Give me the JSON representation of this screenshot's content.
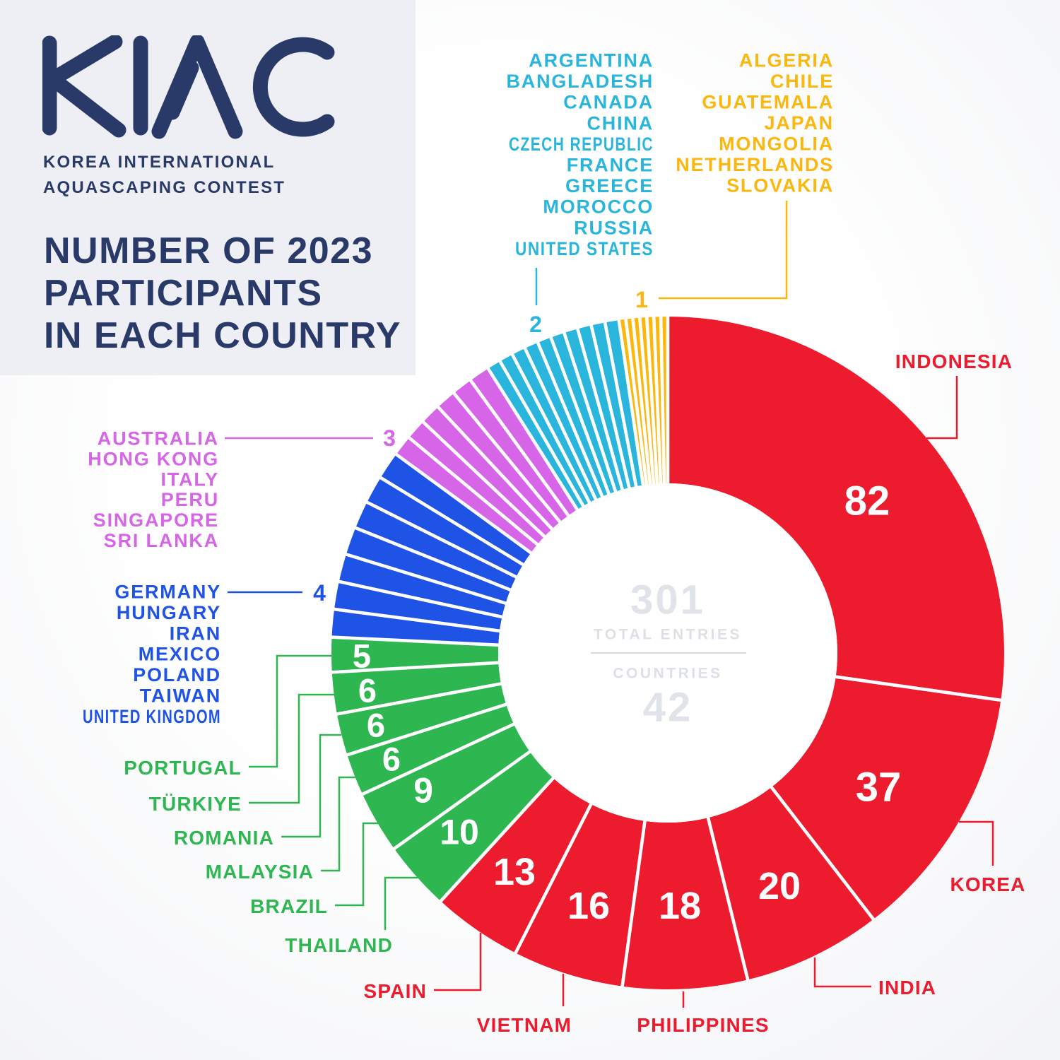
{
  "header": {
    "logo_text": "KIAC",
    "subtitle_line1": "KOREA INTERNATIONAL",
    "subtitle_line2": "AQUASCAPING CONTEST",
    "title_line1": "NUMBER OF 2023",
    "title_line2": "PARTICIPANTS",
    "title_line3": "IN EACH COUNTRY"
  },
  "center": {
    "total_value": "301",
    "total_label": "TOTAL ENTRIES",
    "countries_label": "COUNTRIES",
    "countries_value": "42"
  },
  "colors": {
    "navy": "#2a3a68",
    "red": "#ec1c2e",
    "green": "#2eb751",
    "blue": "#1e53e5",
    "magenta": "#d765e8",
    "cyan": "#29b5dc",
    "yellow": "#fcb70f",
    "center_text": "#e0e3e9",
    "background_panel": "#edeff4"
  },
  "chart_data": {
    "type": "pie",
    "variant": "donut",
    "title": "NUMBER OF 2023 PARTICIPANTS IN EACH COUNTRY",
    "total_entries": 301,
    "total_countries": 42,
    "legend_position": "around",
    "groups": [
      {
        "key": "red",
        "color": "#ec1c2e",
        "per_country_value": "",
        "items": [
          {
            "name": "INDONESIA",
            "value": 82
          },
          {
            "name": "KOREA",
            "value": 37
          },
          {
            "name": "INDIA",
            "value": 20
          },
          {
            "name": "PHILIPPINES",
            "value": 18
          },
          {
            "name": "VIETNAM",
            "value": 16
          },
          {
            "name": "SPAIN",
            "value": 13
          }
        ]
      },
      {
        "key": "green",
        "color": "#2eb751",
        "per_country_value": "",
        "items": [
          {
            "name": "THAILAND",
            "value": 10
          },
          {
            "name": "BRAZIL",
            "value": 9
          },
          {
            "name": "MALAYSIA",
            "value": 6
          },
          {
            "name": "ROMANIA",
            "value": 6
          },
          {
            "name": "TÜRKIYE",
            "value": 6
          },
          {
            "name": "PORTUGAL",
            "value": 5
          }
        ]
      },
      {
        "key": "blue",
        "color": "#1e53e5",
        "per_country_value": "4",
        "items": [
          {
            "name": "GERMANY",
            "value": 4
          },
          {
            "name": "HUNGARY",
            "value": 4
          },
          {
            "name": "IRAN",
            "value": 4
          },
          {
            "name": "MEXICO",
            "value": 4
          },
          {
            "name": "POLAND",
            "value": 4
          },
          {
            "name": "TAIWAN",
            "value": 4
          },
          {
            "name": "UNITED KINGDOM",
            "value": 4
          }
        ]
      },
      {
        "key": "magenta",
        "color": "#d765e8",
        "per_country_value": "3",
        "items": [
          {
            "name": "AUSTRALIA",
            "value": 3
          },
          {
            "name": "HONG KONG",
            "value": 3
          },
          {
            "name": "ITALY",
            "value": 3
          },
          {
            "name": "PERU",
            "value": 3
          },
          {
            "name": "SINGAPORE",
            "value": 3
          },
          {
            "name": "SRI LANKA",
            "value": 3
          }
        ]
      },
      {
        "key": "cyan",
        "color": "#29b5dc",
        "per_country_value": "2",
        "items": [
          {
            "name": "ARGENTINA",
            "value": 2
          },
          {
            "name": "BANGLADESH",
            "value": 2
          },
          {
            "name": "CANADA",
            "value": 2
          },
          {
            "name": "CHINA",
            "value": 2
          },
          {
            "name": "CZECH REPUBLIC",
            "value": 2
          },
          {
            "name": "FRANCE",
            "value": 2
          },
          {
            "name": "GREECE",
            "value": 2
          },
          {
            "name": "MOROCCO",
            "value": 2
          },
          {
            "name": "RUSSIA",
            "value": 2
          },
          {
            "name": "UNITED STATES",
            "value": 2
          }
        ]
      },
      {
        "key": "yellow",
        "color": "#fcb70f",
        "per_country_value": "1",
        "items": [
          {
            "name": "ALGERIA",
            "value": 1
          },
          {
            "name": "CHILE",
            "value": 1
          },
          {
            "name": "GUATEMALA",
            "value": 1
          },
          {
            "name": "JAPAN",
            "value": 1
          },
          {
            "name": "MONGOLIA",
            "value": 1
          },
          {
            "name": "NETHERLANDS",
            "value": 1
          },
          {
            "name": "SLOVAKIA",
            "value": 1
          }
        ]
      }
    ]
  }
}
